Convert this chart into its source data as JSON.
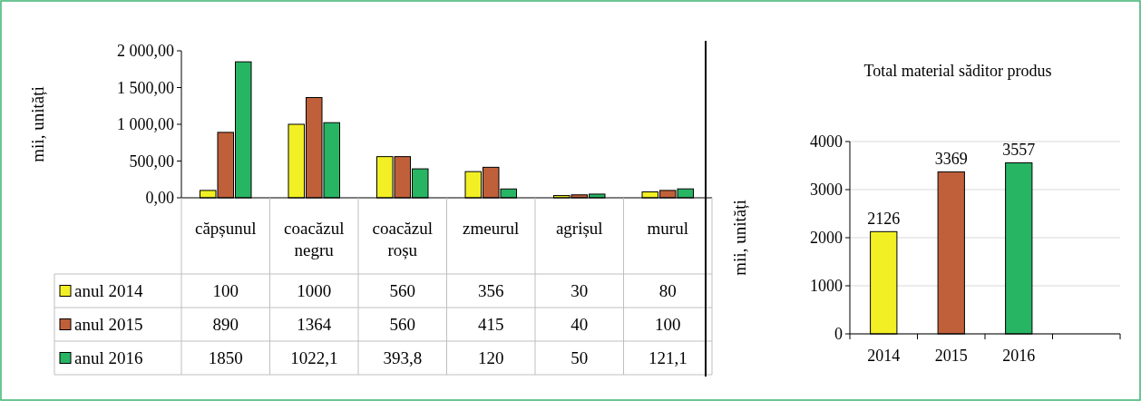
{
  "chart_data": [
    {
      "type": "bar",
      "ylabel": "mii, unități",
      "categories": [
        "căpșunul",
        "coacăzul negru",
        "coacăzul roșu",
        "zmeurul",
        "agrișul",
        "murul"
      ],
      "series": [
        {
          "name": "anul 2014",
          "color": "#f2f024",
          "values": [
            100,
            1000,
            560,
            356,
            30,
            80
          ],
          "value_labels": [
            "100",
            "1000",
            "560",
            "356",
            "30",
            "80"
          ]
        },
        {
          "name": "anul 2015",
          "color": "#c0603a",
          "values": [
            890,
            1364,
            560,
            415,
            40,
            100
          ],
          "value_labels": [
            "890",
            "1364",
            "560",
            "415",
            "40",
            "100"
          ]
        },
        {
          "name": "anul 2016",
          "color": "#27b564",
          "values": [
            1850,
            1022.1,
            393.8,
            120,
            50,
            121.1
          ],
          "value_labels": [
            "1850",
            "1022,1",
            "393,8",
            "120",
            "50",
            "121,1"
          ]
        }
      ],
      "ylim": [
        0,
        2000
      ],
      "yticks": [
        {
          "value": 0,
          "label": "0,00"
        },
        {
          "value": 500,
          "label": "500,00"
        },
        {
          "value": 1000,
          "label": "1 000,00"
        },
        {
          "value": 1500,
          "label": "1 500,00"
        },
        {
          "value": 2000,
          "label": "2 000,00"
        }
      ],
      "legend": "bottom"
    },
    {
      "type": "bar",
      "title": "Total  material săditor produs",
      "ylabel": "mii, unități",
      "categories": [
        "2014",
        "2015",
        "2016",
        null
      ],
      "values": [
        2126,
        3369,
        3557,
        null
      ],
      "colors": [
        "#f2f024",
        "#c0603a",
        "#27b564",
        null
      ],
      "ylim": [
        0,
        4000
      ],
      "yticks": [
        0,
        1000,
        2000,
        3000,
        4000
      ],
      "grid": "y",
      "data_labels": true
    }
  ]
}
